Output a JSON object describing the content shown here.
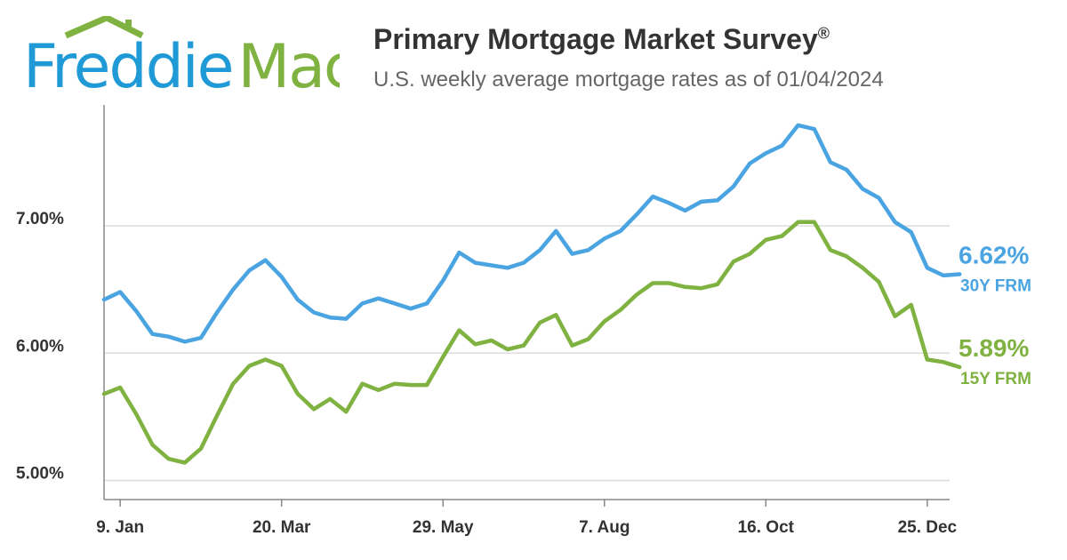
{
  "header": {
    "logo_part1": "Freddie",
    "logo_part2": "Mac",
    "title": "Primary Mortgage Market Survey",
    "title_mark": "®",
    "subtitle": "U.S. weekly average mortgage rates as of 01/04/2024"
  },
  "colors": {
    "blue": "#4aa4e2",
    "green": "#7fb241",
    "grid": "#dddddd",
    "axis": "#888888",
    "text": "#333333"
  },
  "chart_data": {
    "type": "line",
    "title": "Primary Mortgage Market Survey",
    "subtitle": "U.S. weekly average mortgage rates as of 01/04/2024",
    "xlim_weeks": [
      0,
      52
    ],
    "ylim": [
      4.85,
      7.95
    ],
    "yticks": [
      5.0,
      6.0,
      7.0
    ],
    "ytick_labels": [
      "5.00%",
      "6.00%",
      "7.00%"
    ],
    "grid": "horizontal",
    "xticks": [
      {
        "label": "9. Jan",
        "week": 1
      },
      {
        "label": "20. Mar",
        "week": 11
      },
      {
        "label": "29. May",
        "week": 21
      },
      {
        "label": "7. Aug",
        "week": 31
      },
      {
        "label": "16. Oct",
        "week": 41
      },
      {
        "label": "25. Dec",
        "week": 51
      }
    ],
    "series": [
      {
        "name": "30Y FRM",
        "color": "#4aa4e2",
        "end_label": "6.62%",
        "values": [
          6.42,
          6.48,
          6.33,
          6.15,
          6.13,
          6.09,
          6.12,
          6.32,
          6.5,
          6.65,
          6.73,
          6.6,
          6.42,
          6.32,
          6.28,
          6.27,
          6.39,
          6.43,
          6.39,
          6.35,
          6.39,
          6.57,
          6.79,
          6.71,
          6.69,
          6.67,
          6.71,
          6.81,
          6.96,
          6.78,
          6.81,
          6.9,
          6.96,
          7.09,
          7.23,
          7.18,
          7.12,
          7.19,
          7.2,
          7.31,
          7.49,
          7.57,
          7.63,
          7.79,
          7.76,
          7.5,
          7.44,
          7.29,
          7.22,
          7.03,
          6.95,
          6.67,
          6.61,
          6.62
        ]
      },
      {
        "name": "15Y FRM",
        "color": "#7fb241",
        "end_label": "5.89%",
        "values": [
          5.68,
          5.73,
          5.52,
          5.28,
          5.17,
          5.14,
          5.25,
          5.51,
          5.76,
          5.9,
          5.95,
          5.9,
          5.68,
          5.56,
          5.64,
          5.54,
          5.76,
          5.71,
          5.76,
          5.75,
          5.75,
          5.97,
          6.18,
          6.07,
          6.1,
          6.03,
          6.06,
          6.24,
          6.3,
          6.06,
          6.11,
          6.25,
          6.34,
          6.46,
          6.55,
          6.55,
          6.52,
          6.51,
          6.54,
          6.72,
          6.78,
          6.89,
          6.92,
          7.03,
          7.03,
          6.81,
          6.76,
          6.67,
          6.56,
          6.29,
          6.38,
          5.95,
          5.93,
          5.89
        ]
      }
    ]
  }
}
